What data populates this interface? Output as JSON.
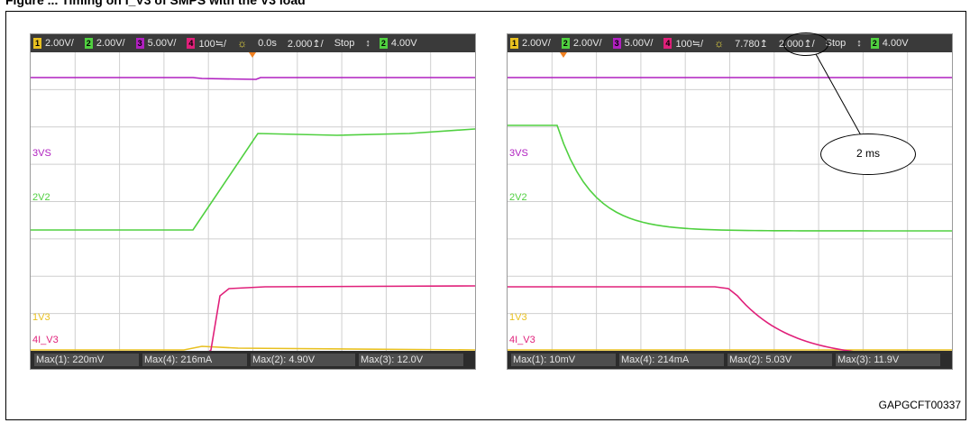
{
  "figure_title": "Figure ... Timing on I_V3 of SMPS with the V3 load",
  "footnote": "GAPGCFT00337",
  "callout": {
    "text": "2 ms"
  },
  "colors": {
    "ch1": "#e8c020",
    "ch2": "#50d040",
    "ch3": "#b020c0",
    "ch4": "#e0207a",
    "grid": "#cfcfcf",
    "cursor": "#f08020"
  },
  "scopes": [
    {
      "id": "left",
      "topbar": {
        "ch1": "2.00V/",
        "ch2": "2.00V/",
        "ch3": "5.00V/",
        "ch4": "100≒/",
        "delay": "0.0s",
        "timebase": "2.000↥/",
        "mode": "Stop",
        "trig_source": "4.00V"
      },
      "labels": {
        "ch3": "VS",
        "ch2": "V2",
        "ch1": "V3",
        "ch4": "I_V3"
      },
      "measurements": [
        {
          "label": "Max(1): 220mV"
        },
        {
          "label": "Max(4): 216mA"
        },
        {
          "label": "Max(2): 4.90V"
        },
        {
          "label": "Max(3): 12.0V"
        }
      ]
    },
    {
      "id": "right",
      "topbar": {
        "ch1": "2.00V/",
        "ch2": "2.00V/",
        "ch3": "5.00V/",
        "ch4": "100≒/",
        "delay": "7.780↥",
        "timebase": "2.000↥/",
        "mode": "Stop",
        "trig_source": "4.00V"
      },
      "labels": {
        "ch3": "VS",
        "ch2": "V2",
        "ch1": "V3",
        "ch4": "I_V3"
      },
      "measurements": [
        {
          "label": "Max(1): 10mV"
        },
        {
          "label": "Max(4): 214mA"
        },
        {
          "label": "Max(2): 5.03V"
        },
        {
          "label": "Max(3): 11.9V"
        }
      ]
    }
  ]
}
